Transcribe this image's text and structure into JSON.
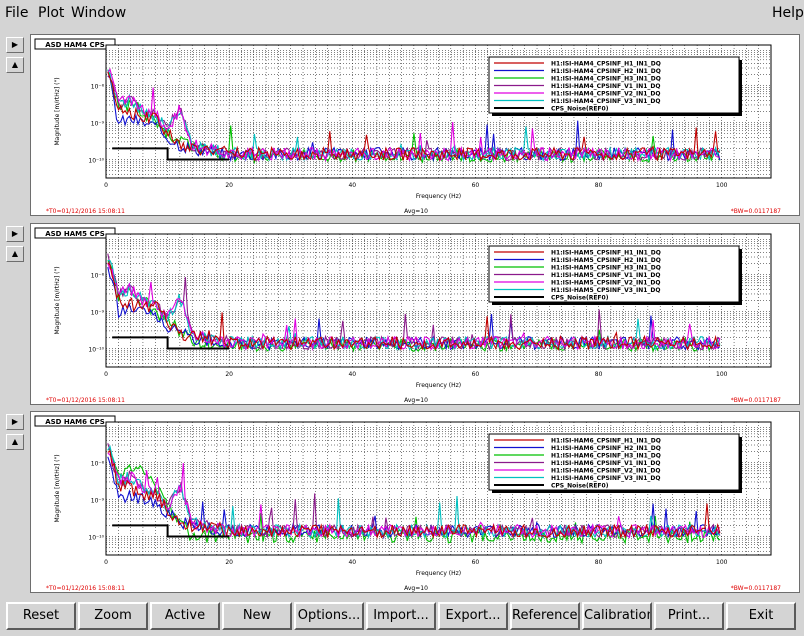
{
  "menu": {
    "file": "File",
    "plot": "Plot",
    "window": "Window",
    "help": "Help"
  },
  "buttons": [
    "Reset",
    "Zoom",
    "Active",
    "New",
    "Options...",
    "Import...",
    "Export...",
    "Reference...",
    "Calibration...",
    "Print...",
    "Exit"
  ],
  "side_buttons": {
    "expand": "▶",
    "collapse": "▲"
  },
  "colors": {
    "series": [
      "#c00000",
      "#1010d0",
      "#00c000",
      "#8b1a8b",
      "#e000e0",
      "#00c0c0",
      "#000000",
      "#a07070"
    ]
  },
  "chart_data": [
    {
      "type": "line",
      "title": "ASD HAM4 CPS",
      "xlabel": "Frequency (Hz)",
      "ylabel": "Magnitude [m/rtHz] (\")",
      "xlim": [
        0,
        108
      ],
      "ylim_log10": [
        -10.5,
        -6.9
      ],
      "x_ticks": [
        "0",
        "20",
        "40",
        "60",
        "80",
        "100"
      ],
      "y_ticks": [
        "10⁻⁸",
        "10⁻⁹",
        "10⁻¹⁰"
      ],
      "grid": true,
      "legend_placement": "top-right",
      "footer_left": "*T0=01/12/2016 15:08:11",
      "footer_center": "Avg=10",
      "footer_right": "*BW=0.0117187",
      "series": [
        {
          "name": "H1:ISI-HAM4_CPSINF_H1_IN1_DQ",
          "x": [
            0.5,
            2,
            4,
            6,
            8,
            10,
            12,
            14,
            16,
            20,
            30,
            40,
            60,
            80,
            100
          ],
          "y": [
            -7.6,
            -8.6,
            -8.7,
            -8.9,
            -8.8,
            -9.3,
            -9.6,
            -9.7,
            -9.7,
            -9.85,
            -9.85,
            -9.85,
            -9.85,
            -9.85,
            -9.85
          ]
        },
        {
          "name": "H1:ISI-HAM4_CPSINF_H2_IN1_DQ",
          "x": [
            0.5,
            2,
            4,
            6,
            8,
            10,
            12,
            14,
            16,
            20,
            30,
            40,
            60,
            80,
            100
          ],
          "y": [
            -7.8,
            -9.0,
            -8.9,
            -9.0,
            -9.1,
            -9.4,
            -9.6,
            -9.7,
            -9.75,
            -9.85,
            -9.85,
            -9.85,
            -9.85,
            -9.85,
            -9.85
          ]
        },
        {
          "name": "H1:ISI-HAM4_CPSINF_H3_IN1_DQ",
          "x": [
            0.5,
            2,
            4,
            6,
            8,
            10,
            12,
            14,
            16,
            20,
            30,
            40,
            60,
            80,
            100
          ],
          "y": [
            -7.7,
            -8.6,
            -8.5,
            -8.7,
            -9.0,
            -9.3,
            -9.5,
            -9.7,
            -9.75,
            -9.9,
            -9.9,
            -9.9,
            -9.9,
            -9.9,
            -9.9
          ]
        },
        {
          "name": "H1:ISI-HAM4_CPSINF_V1_IN1_DQ",
          "x": [
            0.5,
            2,
            4,
            6,
            8,
            10,
            12,
            14,
            16,
            20,
            30,
            40,
            60,
            80,
            100
          ],
          "y": [
            -7.6,
            -8.5,
            -8.4,
            -8.7,
            -8.8,
            -9.2,
            -8.6,
            -9.6,
            -9.7,
            -9.85,
            -9.85,
            -9.85,
            -9.85,
            -9.85,
            -9.85
          ]
        },
        {
          "name": "H1:ISI-HAM4_CPSINF_V2_IN1_DQ",
          "x": [
            0.5,
            2,
            4,
            6,
            8,
            10,
            12,
            14,
            16,
            20,
            30,
            40,
            60,
            80,
            100
          ],
          "y": [
            -7.6,
            -8.5,
            -8.4,
            -8.7,
            -8.8,
            -9.2,
            -8.6,
            -9.6,
            -9.7,
            -9.85,
            -9.85,
            -9.85,
            -9.85,
            -9.85,
            -9.85
          ]
        },
        {
          "name": "H1:ISI-HAM4_CPSINF_V3_IN1_DQ",
          "x": [
            0.5,
            2,
            4,
            6,
            8,
            10,
            12,
            14,
            16,
            20,
            30,
            40,
            60,
            80,
            100
          ],
          "y": [
            -7.6,
            -8.5,
            -8.4,
            -8.7,
            -8.8,
            -9.2,
            -8.6,
            -9.6,
            -9.7,
            -9.85,
            -9.85,
            -9.85,
            -9.85,
            -9.85,
            -9.85
          ]
        },
        {
          "name": "CPS_Noise(REF0)",
          "x": [
            1,
            10,
            10,
            20
          ],
          "y": [
            -9.7,
            -9.7,
            -10.0,
            -10.0
          ]
        }
      ]
    },
    {
      "type": "line",
      "title": "ASD HAM5 CPS",
      "xlabel": "Frequency (Hz)",
      "ylabel": "Magnitude [m/rtHz] (\")",
      "xlim": [
        0,
        108
      ],
      "ylim_log10": [
        -10.5,
        -6.9
      ],
      "x_ticks": [
        "0",
        "20",
        "40",
        "60",
        "80",
        "100"
      ],
      "y_ticks": [
        "10⁻⁸",
        "10⁻⁹",
        "10⁻¹⁰"
      ],
      "grid": true,
      "legend_placement": "top-right",
      "footer_left": "*T0=01/12/2016 15:08:11",
      "footer_center": "Avg=10",
      "footer_right": "*BW=0.0117187",
      "series": [
        {
          "name": "H1:ISI-HAM5_CPSINF_H1_IN1_DQ",
          "x": [
            0.5,
            2,
            4,
            6,
            8,
            10,
            12,
            14,
            16,
            20,
            30,
            40,
            60,
            80,
            100
          ],
          "y": [
            -7.6,
            -8.7,
            -8.8,
            -8.9,
            -8.8,
            -9.3,
            -9.6,
            -9.7,
            -9.7,
            -9.85,
            -9.85,
            -9.85,
            -9.85,
            -9.85,
            -9.85
          ]
        },
        {
          "name": "H1:ISI-HAM5_CPSINF_H2_IN1_DQ",
          "x": [
            0.5,
            2,
            4,
            6,
            8,
            10,
            12,
            14,
            16,
            20,
            30,
            40,
            60,
            80,
            100
          ],
          "y": [
            -7.8,
            -9.0,
            -8.9,
            -9.0,
            -9.1,
            -9.4,
            -9.6,
            -9.7,
            -9.75,
            -9.85,
            -9.85,
            -9.85,
            -9.85,
            -9.85,
            -9.85
          ]
        },
        {
          "name": "H1:ISI-HAM5_CPSINF_H3_IN1_DQ",
          "x": [
            0.5,
            2,
            4,
            6,
            8,
            10,
            12,
            14,
            16,
            20,
            30,
            40,
            60,
            80,
            100
          ],
          "y": [
            -7.7,
            -8.6,
            -8.5,
            -8.7,
            -9.0,
            -9.3,
            -9.5,
            -9.8,
            -9.9,
            -9.9,
            -9.9,
            -9.9,
            -9.9,
            -9.9,
            -9.9
          ]
        },
        {
          "name": "H1:ISI-HAM5_CPSINF_V1_IN1_DQ",
          "x": [
            0.5,
            2,
            4,
            6,
            8,
            10,
            12,
            14,
            16,
            20,
            30,
            40,
            60,
            80,
            100
          ],
          "y": [
            -7.6,
            -8.5,
            -8.4,
            -8.7,
            -8.8,
            -9.2,
            -8.6,
            -9.6,
            -9.7,
            -9.85,
            -9.85,
            -9.85,
            -9.85,
            -9.85,
            -9.85
          ]
        },
        {
          "name": "H1:ISI-HAM5_CPSINF_V2_IN1_DQ",
          "x": [
            0.5,
            2,
            4,
            6,
            8,
            10,
            12,
            14,
            16,
            20,
            30,
            40,
            60,
            80,
            100
          ],
          "y": [
            -7.6,
            -8.5,
            -8.4,
            -8.7,
            -8.8,
            -9.2,
            -8.6,
            -9.6,
            -9.7,
            -9.85,
            -9.85,
            -9.85,
            -9.85,
            -9.85,
            -9.85
          ]
        },
        {
          "name": "H1:ISI-HAM5_CPSINF_V3_IN1_DQ",
          "x": [
            0.5,
            2,
            4,
            6,
            8,
            10,
            12,
            14,
            16,
            20,
            30,
            40,
            60,
            80,
            100
          ],
          "y": [
            -7.6,
            -8.5,
            -8.4,
            -8.7,
            -8.8,
            -9.2,
            -8.6,
            -9.6,
            -9.7,
            -9.85,
            -9.85,
            -9.85,
            -9.85,
            -9.85,
            -9.85
          ]
        },
        {
          "name": "CPS_Noise(REF0)",
          "x": [
            1,
            10,
            10,
            20
          ],
          "y": [
            -9.7,
            -9.7,
            -10.0,
            -10.0
          ]
        }
      ]
    },
    {
      "type": "line",
      "title": "ASD HAM6 CPS",
      "xlabel": "Frequency (Hz)",
      "ylabel": "Magnitude [m/rtHz] (\")",
      "xlim": [
        0,
        108
      ],
      "ylim_log10": [
        -10.5,
        -6.9
      ],
      "x_ticks": [
        "0",
        "20",
        "40",
        "60",
        "80",
        "100"
      ],
      "y_ticks": [
        "10⁻⁸",
        "10⁻⁹",
        "10⁻¹⁰"
      ],
      "grid": true,
      "legend_placement": "top-right",
      "footer_left": "*T0=01/12/2016 15:08:11",
      "footer_center": "Avg=10",
      "footer_right": "*BW=0.0117187",
      "series": [
        {
          "name": "H1:ISI-HAM6_CPSINF_H1_IN1_DQ",
          "x": [
            0.5,
            2,
            4,
            6,
            8,
            10,
            12,
            14,
            16,
            20,
            30,
            40,
            60,
            80,
            100
          ],
          "y": [
            -7.6,
            -8.6,
            -8.7,
            -8.9,
            -8.8,
            -9.3,
            -9.6,
            -9.7,
            -9.7,
            -9.85,
            -9.85,
            -9.85,
            -9.85,
            -9.85,
            -9.85
          ]
        },
        {
          "name": "H1:ISI-HAM6_CPSINF_H2_IN1_DQ",
          "x": [
            0.5,
            2,
            4,
            6,
            8,
            10,
            12,
            14,
            16,
            20,
            30,
            40,
            60,
            80,
            100
          ],
          "y": [
            -7.8,
            -9.0,
            -8.9,
            -9.0,
            -9.1,
            -9.4,
            -9.6,
            -9.7,
            -9.75,
            -9.85,
            -9.85,
            -9.85,
            -9.85,
            -9.85,
            -9.85
          ]
        },
        {
          "name": "H1:ISI-HAM6_CPSINF_H3_IN1_DQ",
          "x": [
            0.5,
            2,
            4,
            6,
            8,
            10,
            12,
            14,
            16,
            20,
            30,
            40,
            60,
            80,
            100
          ],
          "y": [
            -7.7,
            -8.4,
            -8.2,
            -8.3,
            -8.6,
            -9.2,
            -9.6,
            -10.0,
            -10.0,
            -10.0,
            -10.0,
            -10.0,
            -10.0,
            -10.0,
            -10.0
          ]
        },
        {
          "name": "H1:ISI-HAM6_CPSINF_V1_IN1_DQ",
          "x": [
            0.5,
            2,
            4,
            6,
            8,
            10,
            12,
            14,
            16,
            20,
            30,
            40,
            60,
            80,
            100
          ],
          "y": [
            -7.6,
            -8.5,
            -8.4,
            -8.7,
            -8.8,
            -9.2,
            -8.6,
            -9.6,
            -9.7,
            -9.85,
            -9.85,
            -9.85,
            -9.85,
            -9.85,
            -9.85
          ]
        },
        {
          "name": "H1:ISI-HAM6_CPSINF_V2_IN1_DQ",
          "x": [
            0.5,
            2,
            4,
            6,
            8,
            10,
            12,
            14,
            16,
            20,
            30,
            40,
            60,
            80,
            100
          ],
          "y": [
            -7.6,
            -8.5,
            -8.4,
            -8.7,
            -8.8,
            -9.2,
            -8.6,
            -9.6,
            -9.7,
            -9.85,
            -9.85,
            -9.85,
            -9.85,
            -9.85,
            -9.85
          ]
        },
        {
          "name": "H1:ISI-HAM6_CPSINF_V3_IN1_DQ",
          "x": [
            0.5,
            2,
            4,
            6,
            8,
            10,
            12,
            14,
            16,
            20,
            30,
            40,
            60,
            80,
            100
          ],
          "y": [
            -7.6,
            -8.5,
            -8.4,
            -8.7,
            -8.8,
            -9.2,
            -8.6,
            -9.6,
            -9.7,
            -9.85,
            -9.85,
            -9.85,
            -9.85,
            -9.85,
            -9.85
          ]
        },
        {
          "name": "CPS_Noise(REF0)",
          "x": [
            1,
            10,
            10,
            20
          ],
          "y": [
            -9.7,
            -9.7,
            -10.0,
            -10.0
          ]
        }
      ]
    }
  ]
}
